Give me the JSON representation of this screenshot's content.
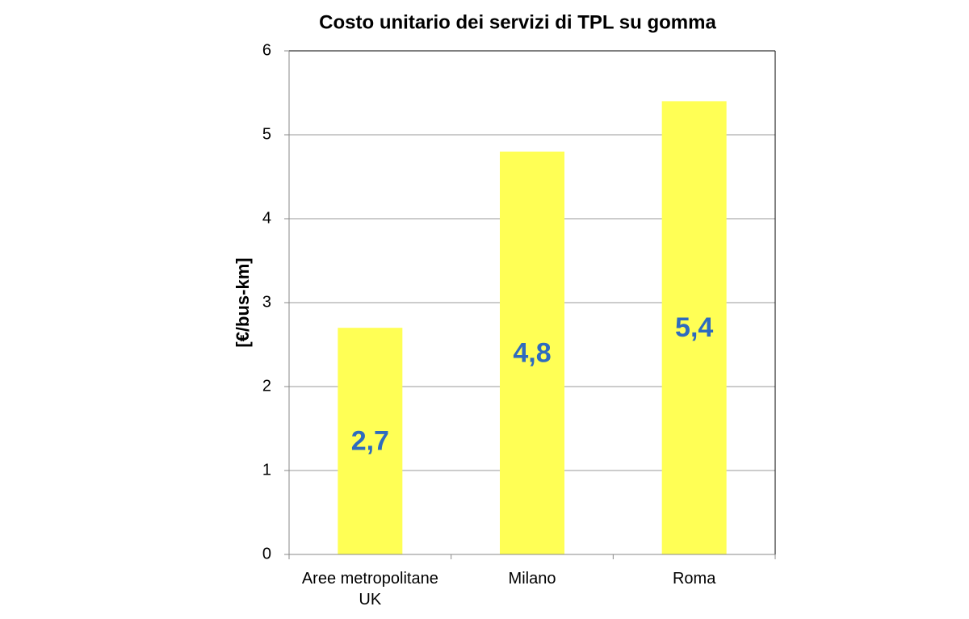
{
  "chart_data": {
    "type": "bar",
    "title": "Costo unitario dei servizi di TPL su gomma",
    "y_label": "[€/bus-km]",
    "categories": [
      "Aree metropolitane UK",
      "Milano",
      "Roma"
    ],
    "values": [
      2.7,
      4.8,
      5.4
    ],
    "value_labels": [
      "2,7",
      "4,8",
      "5,4"
    ],
    "color": "#ffff55",
    "label_color": "#2e6bbf",
    "ylim": [
      0,
      6
    ],
    "yticks": [
      0,
      1,
      2,
      3,
      4,
      5,
      6
    ],
    "grid": true
  }
}
